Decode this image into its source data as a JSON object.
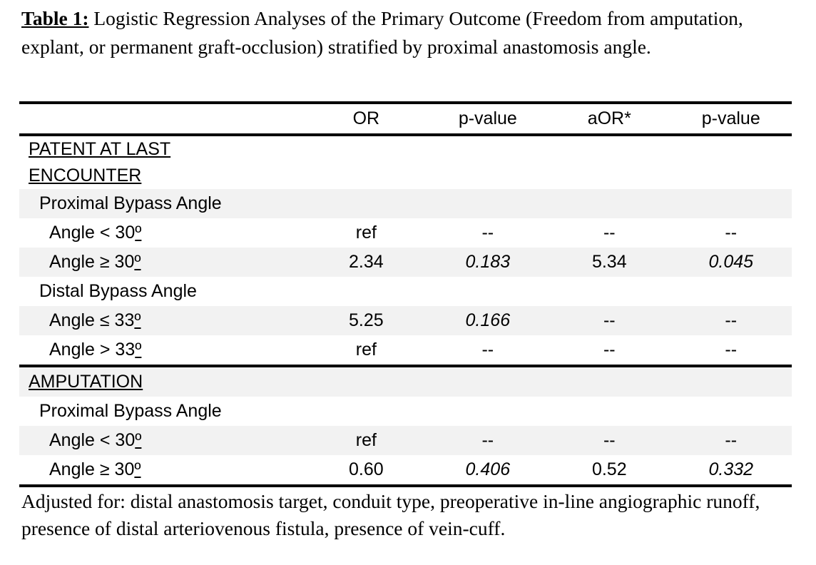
{
  "title": {
    "label": "Table 1:",
    "text": " Logistic Regression Analyses of the Primary Outcome (Freedom from amputation, explant, or permanent graft-occlusion) stratified by proximal anastomosis angle."
  },
  "table": {
    "columns": [
      "OR",
      "p-value",
      "aOR*",
      "p-value"
    ],
    "rows": [
      {
        "type": "section",
        "lines": [
          "PATENT AT LAST",
          "ENCOUNTER"
        ],
        "shade": "white",
        "values": [
          "",
          "",
          "",
          ""
        ],
        "italics": [
          false,
          false,
          false,
          false
        ]
      },
      {
        "type": "group",
        "label": "Proximal Bypass Angle",
        "shade": "gray",
        "values": [
          "",
          "",
          "",
          ""
        ],
        "italics": [
          false,
          false,
          false,
          false
        ]
      },
      {
        "type": "item",
        "label": "Angle < 30º",
        "shade": "white",
        "values": [
          "ref",
          "--",
          "--",
          "--"
        ],
        "italics": [
          false,
          false,
          false,
          false
        ]
      },
      {
        "type": "item",
        "label": "Angle ≥ 30º",
        "shade": "gray",
        "values": [
          "2.34",
          "0.183",
          "5.34",
          "0.045"
        ],
        "italics": [
          false,
          true,
          false,
          true
        ]
      },
      {
        "type": "group",
        "label": "Distal Bypass Angle",
        "shade": "white",
        "values": [
          "",
          "",
          "",
          ""
        ],
        "italics": [
          false,
          false,
          false,
          false
        ]
      },
      {
        "type": "item",
        "label": "Angle ≤ 33º",
        "shade": "gray",
        "values": [
          "5.25",
          "0.166",
          "--",
          "--"
        ],
        "italics": [
          false,
          true,
          false,
          false
        ]
      },
      {
        "type": "item",
        "label": "Angle > 33º",
        "shade": "white",
        "values": [
          "ref",
          "--",
          "--",
          "--"
        ],
        "italics": [
          false,
          false,
          false,
          false
        ]
      },
      {
        "type": "section",
        "lines": [
          "AMPUTATION"
        ],
        "shade": "gray",
        "ruleAbove": true,
        "values": [
          "",
          "",
          "",
          ""
        ],
        "italics": [
          false,
          false,
          false,
          false
        ]
      },
      {
        "type": "group",
        "label": "Proximal Bypass Angle",
        "shade": "white",
        "values": [
          "",
          "",
          "",
          ""
        ],
        "italics": [
          false,
          false,
          false,
          false
        ]
      },
      {
        "type": "item",
        "label": "Angle < 30º",
        "shade": "gray",
        "values": [
          "ref",
          "--",
          "--",
          "--"
        ],
        "italics": [
          false,
          false,
          false,
          false
        ]
      },
      {
        "type": "item",
        "label": "Angle ≥ 30º",
        "shade": "white",
        "values": [
          "0.60",
          "0.406",
          "0.52",
          "0.332"
        ],
        "italics": [
          false,
          true,
          false,
          true
        ]
      }
    ]
  },
  "footnote": "Adjusted for: distal anastomosis target, conduit type, preoperative in-line angiographic runoff, presence of distal arteriovenous fistula, presence of vein-cuff.",
  "colors": {
    "stripe": "#f2f2f2",
    "rule": "#000000",
    "text": "#000000"
  }
}
